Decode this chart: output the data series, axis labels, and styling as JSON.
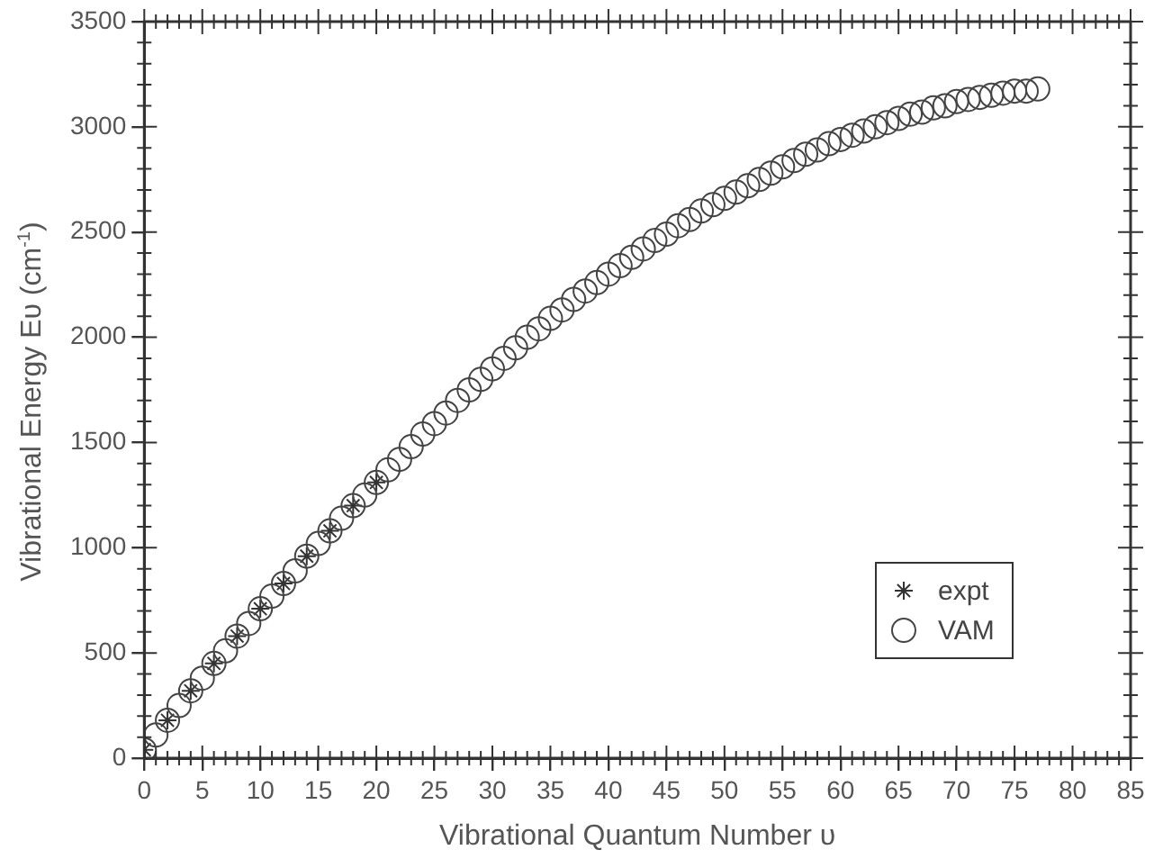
{
  "chart_data": {
    "type": "scatter",
    "xlabel": "Vibrational Quantum Number υ",
    "ylabel": "Vibrational Energy Eυ (cm$^{-1}$)",
    "xlim": [
      0,
      85
    ],
    "xticks": [
      0,
      5,
      10,
      15,
      20,
      25,
      30,
      35,
      40,
      45,
      50,
      55,
      60,
      65,
      70,
      75,
      80,
      85
    ],
    "ylim": [
      0,
      3500
    ],
    "yticks": [
      0,
      500,
      1000,
      1500,
      2000,
      2500,
      3000,
      3500
    ],
    "grid": false,
    "legend": "bottom right",
    "series": [
      {
        "name": "expt",
        "color": "#333333",
        "marker": "cross",
        "x": [
          0,
          2,
          4,
          6,
          8,
          10,
          12,
          14,
          16,
          18,
          20
        ],
        "values": [
          40,
          180,
          320,
          450,
          580,
          710,
          830,
          960,
          1080,
          1200,
          1310
        ]
      },
      {
        "name": "VAM",
        "color": "#444444",
        "marker": "circle",
        "x": [
          0,
          1,
          2,
          3,
          4,
          5,
          6,
          7,
          8,
          9,
          10,
          11,
          12,
          13,
          14,
          15,
          16,
          17,
          18,
          19,
          20,
          21,
          22,
          23,
          24,
          25,
          26,
          27,
          28,
          29,
          30,
          31,
          32,
          33,
          34,
          35,
          36,
          37,
          38,
          39,
          40,
          41,
          42,
          43,
          44,
          45,
          46,
          47,
          48,
          49,
          50,
          51,
          52,
          53,
          54,
          55,
          56,
          57,
          58,
          59,
          60,
          61,
          62,
          63,
          64,
          65,
          66,
          67,
          68,
          69,
          70,
          71,
          72,
          73,
          74,
          75,
          76,
          77
        ],
        "values": [
          40,
          110,
          180,
          250,
          320,
          380,
          450,
          510,
          580,
          640,
          710,
          770,
          830,
          890,
          960,
          1020,
          1080,
          1140,
          1200,
          1250,
          1310,
          1370,
          1420,
          1480,
          1540,
          1590,
          1640,
          1700,
          1750,
          1800,
          1850,
          1900,
          1950,
          2000,
          2040,
          2090,
          2130,
          2180,
          2220,
          2260,
          2300,
          2340,
          2380,
          2420,
          2460,
          2490,
          2530,
          2560,
          2600,
          2630,
          2660,
          2690,
          2720,
          2750,
          2780,
          2810,
          2840,
          2870,
          2890,
          2920,
          2940,
          2960,
          2980,
          3000,
          3020,
          3040,
          3060,
          3070,
          3090,
          3100,
          3120,
          3130,
          3140,
          3150,
          3160,
          3170,
          3170,
          3180
        ]
      }
    ]
  }
}
